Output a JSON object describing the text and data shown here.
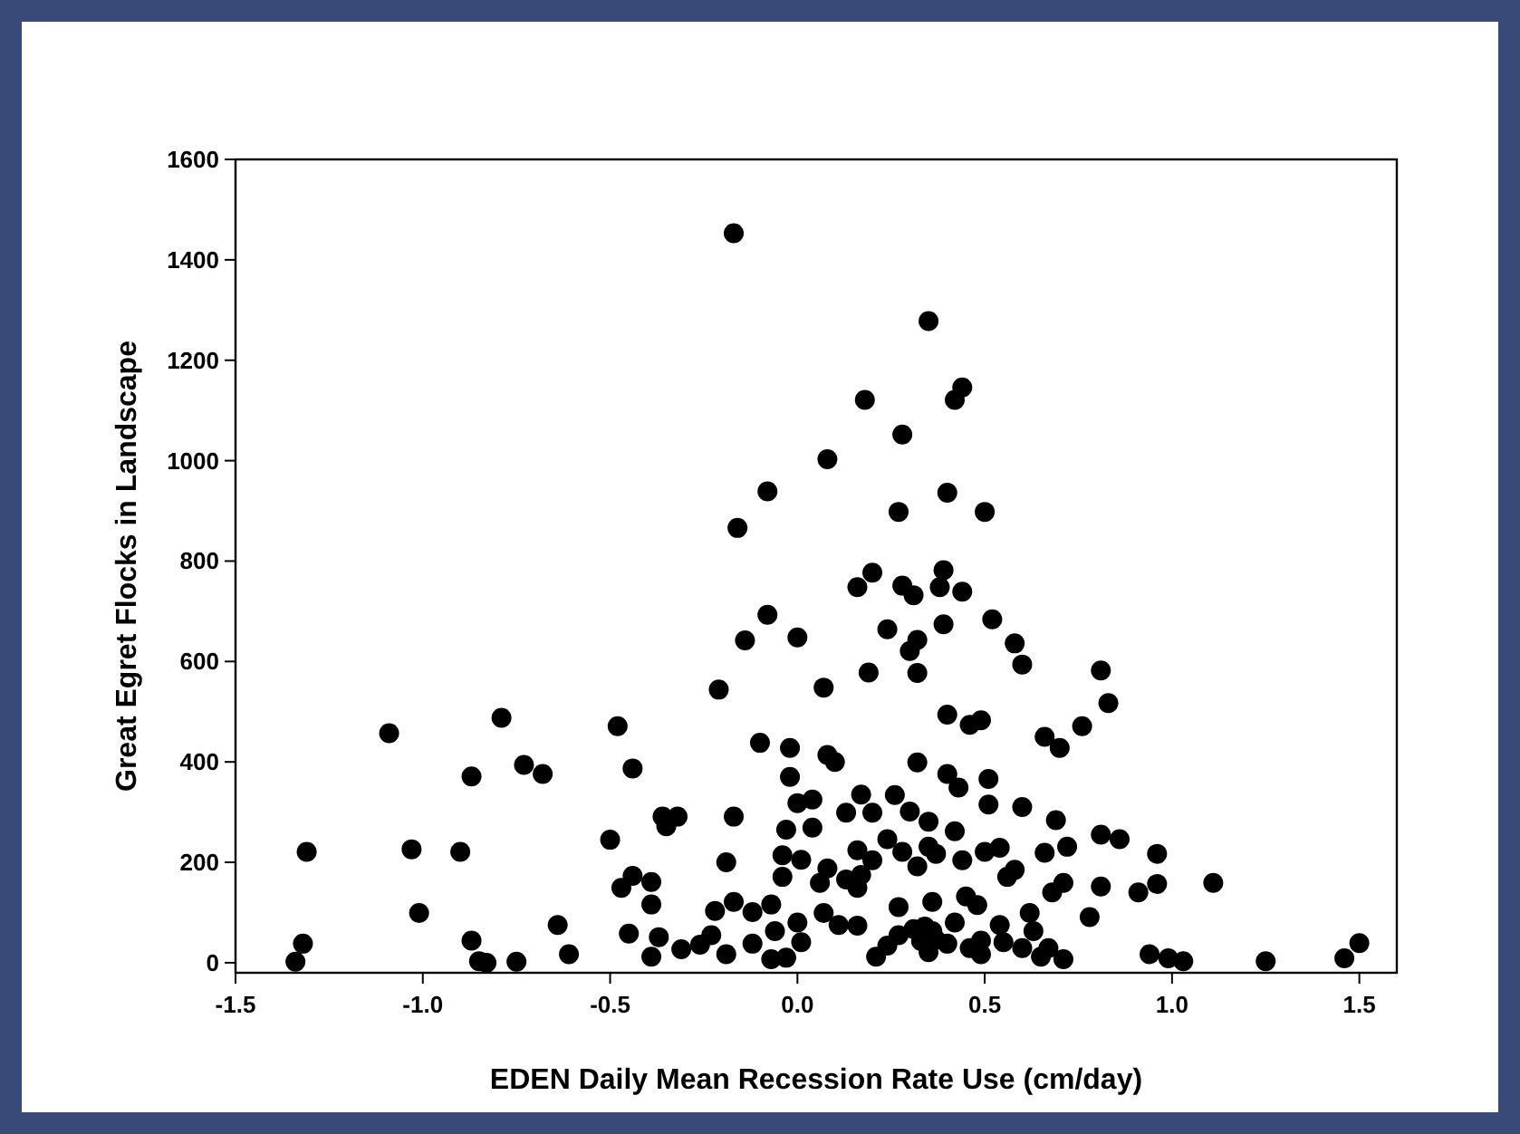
{
  "chart_data": {
    "type": "scatter",
    "xlabel": "EDEN Daily Mean Recession Rate Use (cm/day)",
    "ylabel": "Great Egret Flocks in Landscape",
    "xlim": [
      -1.5,
      1.6
    ],
    "xticks": [
      {
        "value": -1.5,
        "label": "-1.5"
      },
      {
        "value": -1.0,
        "label": "-1.0"
      },
      {
        "value": -0.5,
        "label": "-0.5"
      },
      {
        "value": 0,
        "label": "0.0"
      },
      {
        "value": 0.5,
        "label": "0.5"
      },
      {
        "value": 1.0,
        "label": "1.0"
      },
      {
        "value": 1.5,
        "label": "1.5"
      }
    ],
    "ylim": [
      -20,
      1600
    ],
    "yticks": [
      0,
      200,
      400,
      600,
      800,
      1000,
      1200,
      1400,
      1600
    ],
    "grid": false,
    "marker": "circle",
    "series": [
      {
        "color": "#000000",
        "x": [
          -0.17,
          0.35,
          0.18,
          0.44,
          0.42,
          0.28,
          0.08,
          -0.08,
          0.4,
          0.27,
          0.5,
          -0.16,
          0.2,
          0.16,
          0.28,
          0.31,
          0.39,
          0.38,
          0.44,
          -0.08,
          0.0,
          -0.14,
          0.24,
          0.32,
          0.3,
          0.39,
          0.52,
          0.58,
          0.6,
          0.19,
          0.32,
          -0.21,
          0.07,
          0.81,
          0.83,
          -1.09,
          -0.79,
          -0.48,
          0.4,
          0.46,
          0.49,
          0.76,
          0.66,
          0.7,
          -0.1,
          -0.02,
          0.08,
          0.1,
          0.32,
          -0.73,
          -0.68,
          -0.87,
          -0.44,
          -0.02,
          0.4,
          0.43,
          0.51,
          0.51,
          0.6,
          0.0,
          0.04,
          0.17,
          0.26,
          0.2,
          0.13,
          0.3,
          -0.17,
          -0.36,
          -0.32,
          -0.35,
          0.35,
          0.69,
          0.04,
          -0.03,
          0.42,
          -0.5,
          0.24,
          0.81,
          0.86,
          -1.31,
          -1.03,
          -0.9,
          -0.19,
          0.72,
          0.96,
          -0.04,
          0.01,
          0.16,
          0.28,
          0.35,
          0.44,
          0.5,
          0.54,
          0.66,
          0.08,
          0.2,
          0.32,
          0.37,
          -0.44,
          -0.47,
          -0.39,
          -0.04,
          0.06,
          0.13,
          0.16,
          0.17,
          0.56,
          0.58,
          0.71,
          0.81,
          0.96,
          1.11,
          0.91,
          0.68,
          -1.01,
          -0.39,
          -0.22,
          -0.17,
          -0.07,
          -0.12,
          0.07,
          0.11,
          0.16,
          0.27,
          0.36,
          0.45,
          0.48,
          0.62,
          0.78,
          -0.64,
          -0.87,
          -0.45,
          -0.37,
          -0.31,
          -0.26,
          -0.23,
          -0.19,
          -0.12,
          -0.06,
          0.0,
          0.01,
          -0.07,
          -0.03,
          -0.39,
          -0.61,
          -1.32,
          -1.34,
          -0.85,
          -0.83,
          -0.75,
          0.21,
          0.24,
          0.27,
          0.31,
          0.33,
          0.35,
          0.37,
          0.34,
          0.36,
          0.4,
          0.42,
          0.46,
          0.49,
          0.49,
          0.54,
          0.55,
          0.6,
          0.63,
          0.65,
          0.67,
          0.71,
          0.94,
          0.99,
          1.03,
          1.25,
          1.46,
          1.5
        ],
        "values": [
          1453,
          1278,
          1121,
          1146,
          1121,
          1052,
          1003,
          939,
          936,
          898,
          898,
          866,
          777,
          748,
          751,
          732,
          782,
          748,
          739,
          693,
          648,
          642,
          664,
          643,
          621,
          674,
          684,
          636,
          594,
          578,
          577,
          544,
          548,
          582,
          517,
          457,
          488,
          471,
          494,
          474,
          483,
          471,
          450,
          428,
          438,
          428,
          414,
          400,
          399,
          394,
          376,
          371,
          387,
          370,
          376,
          349,
          366,
          315,
          310,
          318,
          325,
          335,
          334,
          299,
          299,
          301,
          291,
          291,
          291,
          272,
          281,
          284,
          269,
          265,
          262,
          245,
          246,
          255,
          246,
          221,
          226,
          221,
          200,
          231,
          217,
          214,
          205,
          224,
          221,
          231,
          204,
          221,
          229,
          219,
          188,
          204,
          192,
          217,
          173,
          149,
          161,
          171,
          159,
          166,
          149,
          175,
          171,
          185,
          159,
          152,
          157,
          159,
          140,
          140,
          99,
          116,
          103,
          121,
          116,
          101,
          99,
          75,
          74,
          111,
          121,
          132,
          115,
          99,
          91,
          75,
          44,
          58,
          51,
          27,
          36,
          55,
          17,
          38,
          63,
          80,
          41,
          7,
          10,
          12,
          17,
          38,
          2,
          3,
          0,
          2,
          12,
          34,
          55,
          67,
          43,
          21,
          46,
          72,
          63,
          38,
          80,
          29,
          17,
          44,
          75,
          41,
          29,
          63,
          12,
          29,
          7,
          17,
          9,
          3,
          3,
          9,
          39
        ]
      }
    ]
  }
}
